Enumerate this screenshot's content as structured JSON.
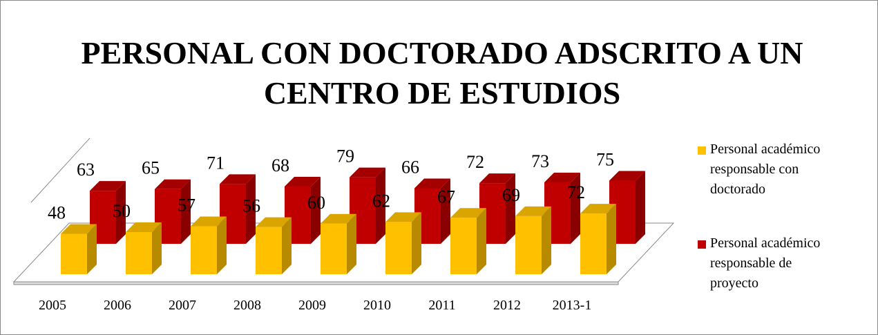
{
  "chart_data": {
    "type": "bar3d",
    "title": "PERSONAL CON DOCTORADO ADSCRITO A UN CENTRO DE ESTUDIOS",
    "categories": [
      "2005",
      "2006",
      "2007",
      "2008",
      "2009",
      "2010",
      "2011",
      "2012",
      "2013-1"
    ],
    "series": [
      {
        "name": "Personal académico responsable con doctorado",
        "color": "#FFC000",
        "values": [
          48,
          50,
          57,
          56,
          60,
          62,
          67,
          69,
          72
        ]
      },
      {
        "name": "Personal académico responsable de proyecto",
        "color": "#C00000",
        "values": [
          63,
          65,
          71,
          68,
          79,
          66,
          72,
          73,
          75
        ]
      }
    ],
    "legend": "right"
  }
}
